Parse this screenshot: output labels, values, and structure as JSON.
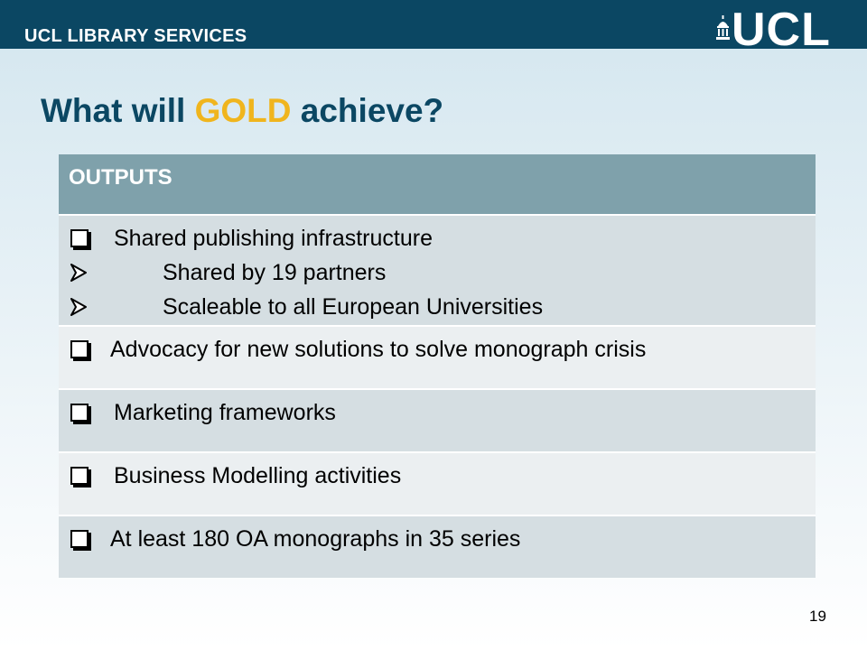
{
  "header": {
    "org_name": "UCL LIBRARY SERVICES",
    "logo_text": "UCL",
    "bar_color": "#0b4763"
  },
  "slide": {
    "title_before": "What will ",
    "title_highlight": "GOLD",
    "title_after": " achieve?",
    "highlight_color": "#f0b51d"
  },
  "table": {
    "header": "OUTPUTS",
    "rows": [
      {
        "text": "Shared publishing infrastructure",
        "sub_items": [
          "Shared by 19 partners",
          "Scaleable to all European Universities"
        ]
      },
      {
        "text": "Advocacy for new solutions to solve monograph crisis"
      },
      {
        "text": "Marketing frameworks"
      },
      {
        "text": "Business Modelling activities"
      },
      {
        "text": "At least 180 OA monographs in 35 series"
      }
    ]
  },
  "footer": {
    "page_number": "19"
  }
}
